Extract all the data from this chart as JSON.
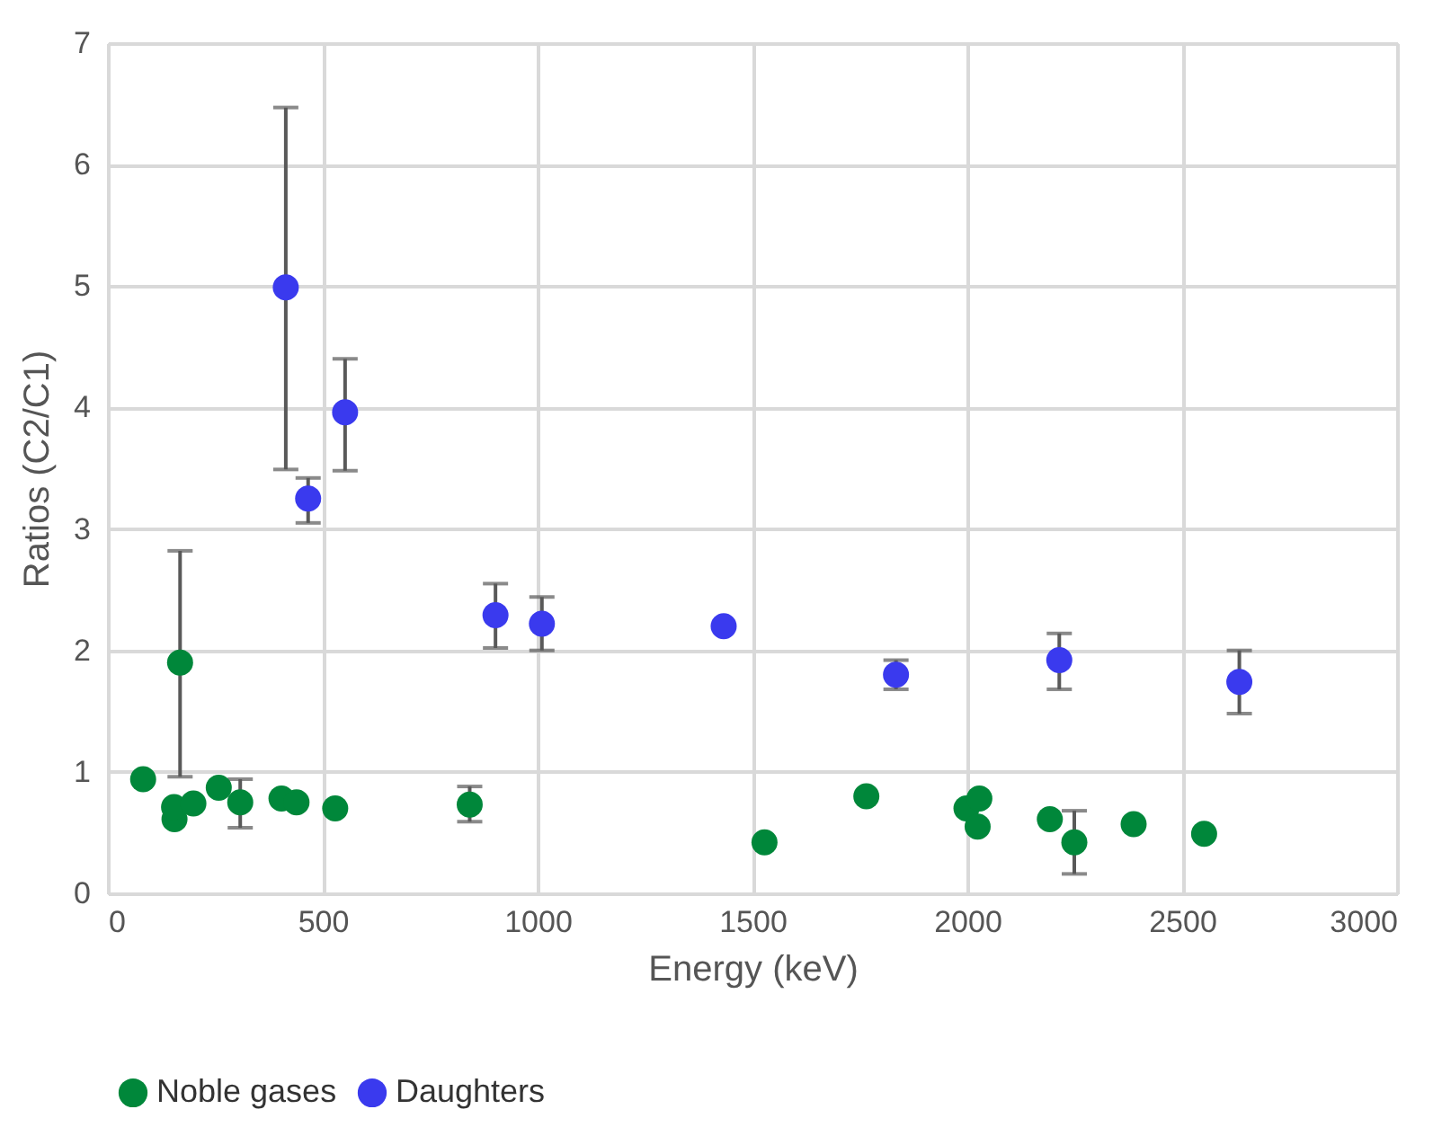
{
  "chart_data": {
    "type": "scatter",
    "xlabel": "Energy (keV)",
    "ylabel": "Ratios (C2/C1)",
    "xlim": [
      0,
      3000
    ],
    "xticks": [
      0,
      500,
      1000,
      1500,
      2000,
      2500,
      3000
    ],
    "ylim": [
      0,
      7
    ],
    "yticks": [
      0,
      1,
      2,
      3,
      4,
      5,
      6,
      7
    ],
    "grid": true,
    "legend": "bottom",
    "marker": "circle",
    "series": [
      {
        "name": "Noble gases",
        "color": "#00873a",
        "x": [
          82,
          155,
          154,
          168,
          199,
          258,
          308,
          404,
          439,
          529,
          842,
          1528,
          1765,
          1998,
          2028,
          2024,
          2192,
          2249,
          2387,
          2551
        ],
        "values": [
          0.94,
          0.61,
          0.71,
          1.9,
          0.74,
          0.87,
          0.75,
          0.78,
          0.75,
          0.7,
          0.73,
          0.42,
          0.8,
          0.7,
          0.78,
          0.55,
          0.61,
          0.42,
          0.57,
          0.49
        ],
        "errors": [
          null,
          null,
          null,
          [
            0.96,
            2.82
          ],
          null,
          null,
          [
            0.54,
            0.94
          ],
          null,
          null,
          null,
          [
            0.59,
            0.88
          ],
          null,
          null,
          null,
          null,
          null,
          null,
          [
            0.16,
            0.68
          ],
          null,
          null
        ]
      },
      {
        "name": "Daughters",
        "color": "#3a3aee",
        "x": [
          414,
          466,
          552,
          902,
          1010,
          1433,
          1834,
          2214,
          2633
        ],
        "values": [
          4.99,
          3.25,
          3.96,
          2.29,
          2.22,
          2.2,
          1.8,
          1.92,
          1.74
        ],
        "errors": [
          [
            3.49,
            6.47
          ],
          [
            3.05,
            3.42
          ],
          [
            3.48,
            4.4
          ],
          [
            2.02,
            2.55
          ],
          [
            2.0,
            2.44
          ],
          null,
          [
            1.68,
            1.92
          ],
          [
            1.68,
            2.14
          ],
          [
            1.48,
            2.0
          ]
        ]
      }
    ]
  }
}
